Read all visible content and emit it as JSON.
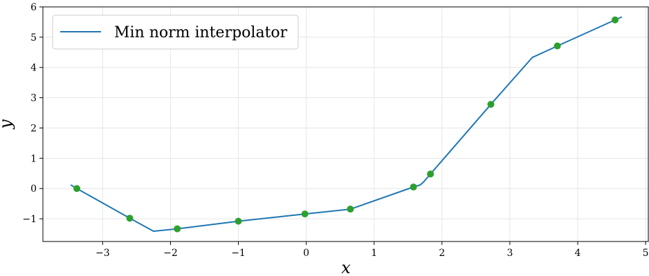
{
  "chart_data": {
    "type": "line",
    "title": "",
    "xlabel": "x",
    "ylabel": "y",
    "xlim": [
      -3.88,
      5.05
    ],
    "ylim": [
      -1.75,
      6.0
    ],
    "x_ticks": [
      -3,
      -2,
      -1,
      0,
      1,
      2,
      3,
      4,
      5
    ],
    "y_ticks": [
      -1,
      0,
      1,
      2,
      3,
      4,
      5,
      6
    ],
    "grid": true,
    "legend": {
      "position": "top-left",
      "entries": [
        "Min norm interpolator"
      ]
    },
    "series": [
      {
        "name": "Min norm interpolator",
        "kind": "line",
        "color": "#1f77b4",
        "x": [
          -3.47,
          -3.38,
          -2.6,
          -2.25,
          -1.9,
          -1.0,
          -0.02,
          0.65,
          1.58,
          1.68,
          1.73,
          1.83,
          2.72,
          3.33,
          3.7,
          4.55,
          4.65
        ],
        "y": [
          0.12,
          0.0,
          -0.98,
          -1.41,
          -1.33,
          -1.08,
          -0.84,
          -0.68,
          0.05,
          0.12,
          0.22,
          0.48,
          2.78,
          4.33,
          4.71,
          5.57,
          5.67
        ]
      },
      {
        "name": "",
        "kind": "scatter",
        "color": "#2ca02c",
        "x": [
          -3.38,
          -2.6,
          -1.9,
          -1.0,
          -0.02,
          0.65,
          1.58,
          1.83,
          2.72,
          3.7,
          4.55
        ],
        "y": [
          0.0,
          -0.98,
          -1.33,
          -1.08,
          -0.84,
          -0.68,
          0.05,
          0.48,
          2.78,
          4.71,
          5.57
        ]
      }
    ]
  }
}
